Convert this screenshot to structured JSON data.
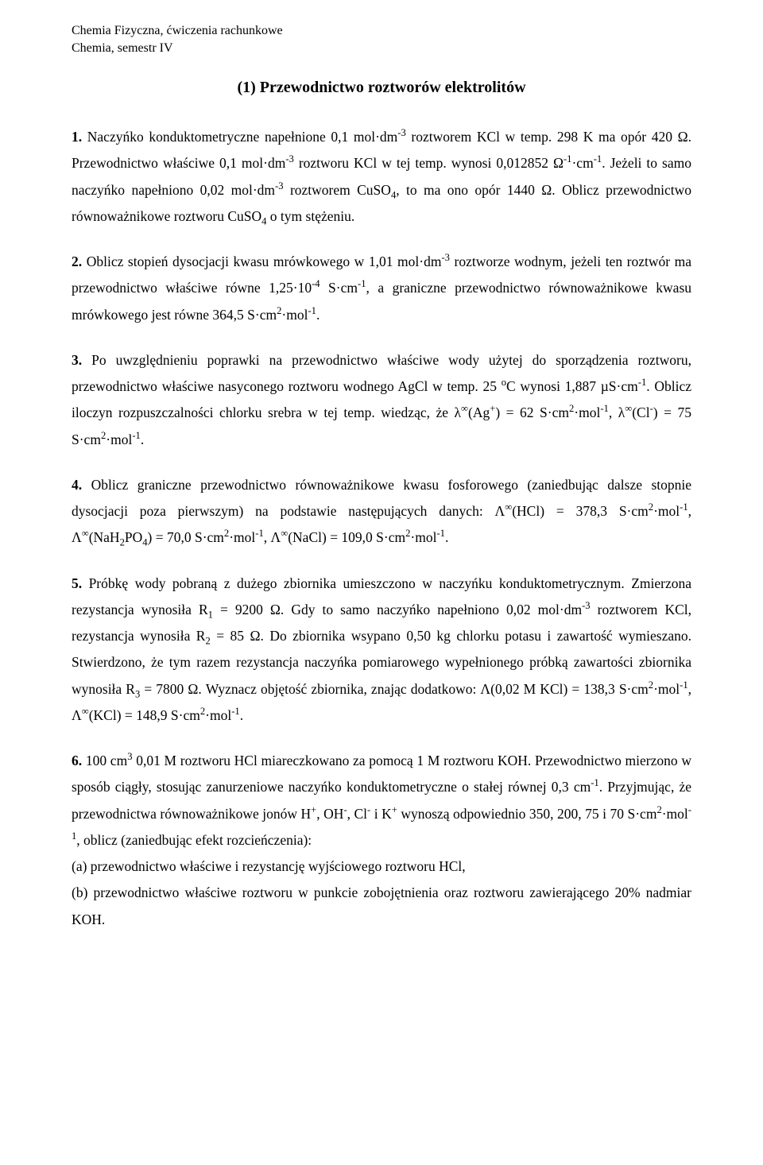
{
  "header": {
    "line1": "Chemia Fizyczna, ćwiczenia rachunkowe",
    "line2": "Chemia, semestr IV"
  },
  "title": "(1) Przewodnictwo roztworów elektrolitów",
  "problems": {
    "p1": {
      "num": "1.",
      "html": "Naczyńko konduktometryczne napełnione 0,1 mol·dm<sup>-3</sup> roztworem KCl w temp. 298 K ma opór 420 Ω. Przewodnictwo właściwe 0,1 mol·dm<sup>-3</sup> roztworu KCl w tej temp. wynosi 0,012852 Ω<sup>-1</sup>·cm<sup>-1</sup>. Jeżeli to samo naczyńko napełniono 0,02 mol·dm<sup>-3</sup> roztworem CuSO<sub>4</sub>, to ma ono opór 1440 Ω. Oblicz przewodnictwo równoważnikowe roztworu CuSO<sub>4</sub> o tym stężeniu."
    },
    "p2": {
      "num": "2.",
      "html": "Oblicz stopień dysocjacji kwasu mrówkowego w 1,01 mol·dm<sup>-3</sup> roztworze wodnym, jeżeli ten roztwór ma przewodnictwo właściwe równe 1,25·10<sup>-4</sup> S·cm<sup>-1</sup>, a graniczne przewodnictwo równoważnikowe kwasu mrówkowego jest równe 364,5 S·cm<sup>2</sup>·mol<sup>-1</sup>."
    },
    "p3": {
      "num": "3.",
      "html": "Po uwzględnieniu poprawki na przewodnictwo właściwe wody użytej do sporządzenia roztworu, przewodnictwo właściwe nasyconego roztworu wodnego AgCl w temp. 25 <sup>o</sup>C wynosi 1,887 µS·cm<sup>-1</sup>. Oblicz iloczyn rozpuszczalności chlorku srebra w tej temp. wiedząc, że λ<sup>∞</sup>(Ag<sup>+</sup>) = 62 S·cm<sup>2</sup>·mol<sup>-1</sup>, λ<sup>∞</sup>(Cl<sup>-</sup>) = 75 S·cm<sup>2</sup>·mol<sup>-1</sup>."
    },
    "p4": {
      "num": "4.",
      "html": "Oblicz graniczne przewodnictwo równoważnikowe kwasu fosforowego (zaniedbując dalsze stopnie dysocjacji poza pierwszym) na podstawie następujących danych: Λ<sup>∞</sup>(HCl) = 378,3 S·cm<sup>2</sup>·mol<sup>-1</sup>, Λ<sup>∞</sup>(NaH<sub>2</sub>PO<sub>4</sub>) = 70,0 S·cm<sup>2</sup>·mol<sup>-1</sup>, Λ<sup>∞</sup>(NaCl) = 109,0 S·cm<sup>2</sup>·mol<sup>-1</sup>."
    },
    "p5": {
      "num": "5.",
      "html": "Próbkę wody pobraną z dużego zbiornika umieszczono w naczyńku konduktometrycznym. Zmierzona rezystancja wynosiła R<sub>1</sub> = 9200 Ω. Gdy to samo naczyńko napełniono 0,02 mol·dm<sup>-3</sup> roztworem KCl, rezystancja wynosiła R<sub>2</sub> = 85 Ω. Do zbiornika wsypano 0,50 kg chlorku potasu i zawartość wymieszano. Stwierdzono, że tym razem rezystancja naczyńka pomiarowego wypełnionego próbką zawartości zbiornika wynosiła R<sub>3</sub> = 7800 Ω. Wyznacz objętość zbiornika, znając dodatkowo: Λ(0,02 M KCl) = 138,3 S·cm<sup>2</sup>·mol<sup>-1</sup>, Λ<sup>∞</sup>(KCl) = 148,9 S·cm<sup>2</sup>·mol<sup>-1</sup>."
    },
    "p6": {
      "num": "6.",
      "html": "100 cm<sup>3</sup> 0,01 M roztworu HCl miareczkowano za pomocą 1 M roztworu KOH. Przewodnictwo mierzono w sposób ciągły, stosując zanurzeniowe naczyńko konduktometryczne o stałej równej 0,3 cm<sup>-1</sup>. Przyjmując, że przewodnictwa równoważnikowe jonów H<sup>+</sup>, OH<sup>-</sup>, Cl<sup>-</sup> i K<sup>+</sup> wynoszą odpowiednio 350, 200, 75 i 70 S·cm<sup>2</sup>·mol<sup>-1</sup>, oblicz (zaniedbując efekt rozcieńczenia):<br>(a) przewodnictwo właściwe i rezystancję wyjściowego roztworu HCl,<br>(b) przewodnictwo właściwe roztworu w punkcie zobojętnienia oraz roztworu zawierającego 20% nadmiar KOH."
    }
  }
}
